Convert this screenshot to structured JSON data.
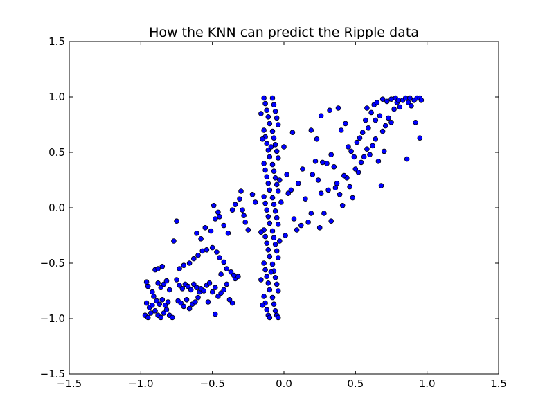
{
  "chart_data": {
    "type": "scatter",
    "title": "How the KNN can predict the Ripple data",
    "xlabel": "",
    "ylabel": "",
    "xlim": [
      -1.5,
      1.5
    ],
    "ylim": [
      -1.5,
      1.5
    ],
    "x_ticks": [
      "−1.5",
      "−1.0",
      "−0.5",
      "0.0",
      "0.5",
      "1.0",
      "1.5"
    ],
    "y_ticks": [
      "−1.5",
      "−1.0",
      "−0.5",
      "0.0",
      "0.5",
      "1.0",
      "1.5"
    ],
    "grid": false,
    "marker_fill": "#0000ff",
    "marker_edge": "#000000",
    "series": [
      {
        "points": [
          [
            -0.97,
            -0.97
          ],
          [
            -0.95,
            -0.99
          ],
          [
            -0.93,
            -0.95
          ],
          [
            -0.96,
            -0.86
          ],
          [
            -0.94,
            -0.9
          ],
          [
            -0.92,
            -0.88
          ],
          [
            -0.9,
            -0.93
          ],
          [
            -0.88,
            -0.97
          ],
          [
            -0.86,
            -0.99
          ],
          [
            -0.84,
            -0.95
          ],
          [
            -0.82,
            -0.92
          ],
          [
            -0.8,
            -0.97
          ],
          [
            -0.78,
            -0.99
          ],
          [
            -0.91,
            -0.8
          ],
          [
            -0.89,
            -0.84
          ],
          [
            -0.87,
            -0.87
          ],
          [
            -0.85,
            -0.83
          ],
          [
            -0.83,
            -0.88
          ],
          [
            -0.81,
            -0.85
          ],
          [
            -0.96,
            -0.67
          ],
          [
            -0.95,
            -0.71
          ],
          [
            -0.92,
            -0.76
          ],
          [
            -0.88,
            -0.68
          ],
          [
            -0.86,
            -0.72
          ],
          [
            -0.84,
            -0.69
          ],
          [
            -0.82,
            -0.66
          ],
          [
            -0.8,
            -0.74
          ],
          [
            -0.9,
            -0.56
          ],
          [
            -0.88,
            -0.55
          ],
          [
            -0.85,
            -0.53
          ],
          [
            -0.75,
            -0.65
          ],
          [
            -0.73,
            -0.7
          ],
          [
            -0.71,
            -0.73
          ],
          [
            -0.69,
            -0.69
          ],
          [
            -0.67,
            -0.71
          ],
          [
            -0.65,
            -0.74
          ],
          [
            -0.63,
            -0.69
          ],
          [
            -0.61,
            -0.72
          ],
          [
            -0.59,
            -0.76
          ],
          [
            -0.74,
            -0.84
          ],
          [
            -0.72,
            -0.86
          ],
          [
            -0.7,
            -0.89
          ],
          [
            -0.68,
            -0.83
          ],
          [
            -0.66,
            -0.91
          ],
          [
            -0.64,
            -0.87
          ],
          [
            -0.62,
            -0.85
          ],
          [
            -0.6,
            -0.81
          ],
          [
            -0.58,
            -0.73
          ],
          [
            -0.56,
            -0.75
          ],
          [
            -0.54,
            -0.7
          ],
          [
            -0.52,
            -0.68
          ],
          [
            -0.5,
            -0.76
          ],
          [
            -0.48,
            -0.72
          ],
          [
            -0.46,
            -0.8
          ],
          [
            -0.44,
            -0.77
          ],
          [
            -0.42,
            -0.74
          ],
          [
            -0.4,
            -0.69
          ],
          [
            -0.38,
            -0.83
          ],
          [
            -0.36,
            -0.86
          ],
          [
            -0.34,
            -0.64
          ],
          [
            -0.32,
            -0.62
          ],
          [
            -0.73,
            -0.55
          ],
          [
            -0.7,
            -0.52
          ],
          [
            -0.66,
            -0.5
          ],
          [
            -0.63,
            -0.46
          ],
          [
            -0.6,
            -0.43
          ],
          [
            -0.57,
            -0.39
          ],
          [
            -0.54,
            -0.38
          ],
          [
            -0.5,
            -0.36
          ],
          [
            -0.47,
            -0.4
          ],
          [
            -0.45,
            -0.45
          ],
          [
            -0.42,
            -0.49
          ],
          [
            -0.4,
            -0.55
          ],
          [
            -0.37,
            -0.58
          ],
          [
            -0.35,
            -0.61
          ],
          [
            -0.77,
            -0.3
          ],
          [
            -0.75,
            -0.12
          ],
          [
            -0.61,
            -0.23
          ],
          [
            -0.58,
            -0.28
          ],
          [
            -0.55,
            -0.18
          ],
          [
            -0.51,
            -0.21
          ],
          [
            -0.48,
            -0.1
          ],
          [
            -0.45,
            -0.08
          ],
          [
            -0.42,
            -0.16
          ],
          [
            -0.39,
            -0.23
          ],
          [
            -0.36,
            -0.02
          ],
          [
            -0.34,
            0.03
          ],
          [
            -0.31,
            0.08
          ],
          [
            -0.29,
            -0.02
          ],
          [
            -0.27,
            -0.13
          ],
          [
            -0.25,
            -0.2
          ],
          [
            -0.22,
            0.12
          ],
          [
            -0.2,
            0.05
          ],
          [
            -0.49,
            0.02
          ],
          [
            -0.46,
            -0.04
          ],
          [
            -0.44,
            -0.6
          ],
          [
            -0.48,
            -0.96
          ],
          [
            -0.53,
            -0.85
          ],
          [
            -0.3,
            0.15
          ],
          [
            -0.28,
            -0.07
          ],
          [
            -0.14,
            0.99
          ],
          [
            -0.13,
            0.94
          ],
          [
            -0.12,
            0.88
          ],
          [
            -0.11,
            0.82
          ],
          [
            -0.1,
            0.76
          ],
          [
            -0.14,
            0.7
          ],
          [
            -0.13,
            0.64
          ],
          [
            -0.12,
            0.58
          ],
          [
            -0.11,
            0.52
          ],
          [
            -0.1,
            0.46
          ],
          [
            -0.14,
            0.4
          ],
          [
            -0.13,
            0.34
          ],
          [
            -0.12,
            0.28
          ],
          [
            -0.11,
            0.22
          ],
          [
            -0.1,
            0.16
          ],
          [
            -0.14,
            0.1
          ],
          [
            -0.13,
            0.04
          ],
          [
            -0.12,
            -0.02
          ],
          [
            -0.11,
            -0.08
          ],
          [
            -0.1,
            -0.14
          ],
          [
            -0.14,
            -0.2
          ],
          [
            -0.13,
            -0.26
          ],
          [
            -0.12,
            -0.32
          ],
          [
            -0.11,
            -0.38
          ],
          [
            -0.1,
            -0.44
          ],
          [
            -0.14,
            -0.5
          ],
          [
            -0.13,
            -0.56
          ],
          [
            -0.12,
            -0.62
          ],
          [
            -0.11,
            -0.68
          ],
          [
            -0.1,
            -0.74
          ],
          [
            -0.14,
            -0.8
          ],
          [
            -0.13,
            -0.86
          ],
          [
            -0.12,
            -0.92
          ],
          [
            -0.11,
            -0.97
          ],
          [
            -0.1,
            -0.99
          ],
          [
            -0.08,
            0.99
          ],
          [
            -0.07,
            0.93
          ],
          [
            -0.06,
            0.87
          ],
          [
            -0.05,
            0.81
          ],
          [
            -0.04,
            0.75
          ],
          [
            -0.08,
            0.69
          ],
          [
            -0.07,
            0.63
          ],
          [
            -0.06,
            0.57
          ],
          [
            -0.05,
            0.51
          ],
          [
            -0.04,
            0.45
          ],
          [
            -0.08,
            0.39
          ],
          [
            -0.07,
            0.33
          ],
          [
            -0.06,
            0.27
          ],
          [
            -0.05,
            0.21
          ],
          [
            -0.04,
            0.15
          ],
          [
            -0.08,
            0.09
          ],
          [
            -0.07,
            0.03
          ],
          [
            -0.06,
            -0.03
          ],
          [
            -0.05,
            -0.09
          ],
          [
            -0.04,
            -0.15
          ],
          [
            -0.08,
            -0.21
          ],
          [
            -0.07,
            -0.27
          ],
          [
            -0.06,
            -0.33
          ],
          [
            -0.05,
            -0.39
          ],
          [
            -0.04,
            -0.45
          ],
          [
            -0.08,
            -0.51
          ],
          [
            -0.07,
            -0.57
          ],
          [
            -0.06,
            -0.63
          ],
          [
            -0.05,
            -0.69
          ],
          [
            -0.04,
            -0.75
          ],
          [
            -0.08,
            -0.81
          ],
          [
            -0.07,
            -0.87
          ],
          [
            -0.06,
            -0.93
          ],
          [
            -0.05,
            -0.97
          ],
          [
            -0.04,
            -0.99
          ],
          [
            -0.15,
            0.62
          ],
          [
            -0.15,
            -0.88
          ],
          [
            -0.16,
            -0.22
          ],
          [
            -0.09,
            0.55
          ],
          [
            -0.09,
            -0.58
          ],
          [
            -0.03,
            0.25
          ],
          [
            -0.03,
            -0.3
          ],
          [
            -0.02,
            0.05
          ],
          [
            -0.16,
            0.85
          ],
          [
            -0.16,
            -0.65
          ],
          [
            0.0,
            0.55
          ],
          [
            0.02,
            0.3
          ],
          [
            0.05,
            0.16
          ],
          [
            0.07,
            -0.1
          ],
          [
            0.09,
            -0.2
          ],
          [
            0.1,
            0.22
          ],
          [
            0.13,
            0.35
          ],
          [
            0.15,
            0.08
          ],
          [
            0.17,
            -0.13
          ],
          [
            0.2,
            0.3
          ],
          [
            0.22,
            0.42
          ],
          [
            0.24,
            0.25
          ],
          [
            0.26,
            0.13
          ],
          [
            0.28,
            -0.05
          ],
          [
            0.3,
            0.4
          ],
          [
            0.33,
            0.48
          ],
          [
            0.35,
            0.37
          ],
          [
            0.37,
            0.22
          ],
          [
            0.39,
            0.12
          ],
          [
            0.41,
            0.02
          ],
          [
            0.06,
            0.68
          ],
          [
            0.19,
            0.7
          ],
          [
            0.23,
            0.62
          ],
          [
            0.26,
            0.83
          ],
          [
            0.32,
            0.88
          ],
          [
            0.38,
            0.9
          ],
          [
            0.4,
            0.7
          ],
          [
            0.43,
            0.76
          ],
          [
            0.45,
            0.55
          ],
          [
            0.47,
            0.51
          ],
          [
            0.49,
            0.46
          ],
          [
            0.51,
            0.59
          ],
          [
            0.53,
            0.63
          ],
          [
            0.55,
            0.68
          ],
          [
            0.57,
            0.79
          ],
          [
            0.59,
            0.72
          ],
          [
            0.61,
            0.86
          ],
          [
            0.63,
            0.93
          ],
          [
            0.65,
            0.95
          ],
          [
            0.67,
            0.83
          ],
          [
            0.69,
            0.69
          ],
          [
            0.71,
            0.74
          ],
          [
            0.73,
            0.81
          ],
          [
            0.75,
            0.77
          ],
          [
            0.77,
            0.89
          ],
          [
            0.79,
            0.95
          ],
          [
            0.81,
            0.91
          ],
          [
            0.83,
            0.97
          ],
          [
            0.85,
            0.99
          ],
          [
            0.87,
            0.95
          ],
          [
            0.89,
            0.92
          ],
          [
            0.91,
            0.97
          ],
          [
            0.93,
            0.99
          ],
          [
            0.95,
            0.99
          ],
          [
            0.96,
            0.97
          ],
          [
            0.72,
            0.96
          ],
          [
            0.75,
            0.98
          ],
          [
            0.78,
            0.99
          ],
          [
            0.8,
            0.97
          ],
          [
            0.88,
            0.99
          ],
          [
            0.44,
            0.27
          ],
          [
            0.46,
            0.19
          ],
          [
            0.48,
            0.09
          ],
          [
            0.5,
            0.35
          ],
          [
            0.52,
            0.32
          ],
          [
            0.54,
            0.41
          ],
          [
            0.56,
            0.46
          ],
          [
            0.58,
            0.53
          ],
          [
            0.6,
            0.48
          ],
          [
            0.62,
            0.56
          ],
          [
            0.64,
            0.62
          ],
          [
            0.66,
            0.42
          ],
          [
            0.68,
            0.2
          ],
          [
            0.7,
            0.51
          ],
          [
            0.86,
            0.44
          ],
          [
            0.95,
            0.63
          ],
          [
            0.92,
            0.77
          ],
          [
            0.33,
            -0.12
          ],
          [
            0.25,
            -0.18
          ],
          [
            0.19,
            -0.05
          ],
          [
            0.12,
            -0.16
          ],
          [
            0.03,
            0.13
          ],
          [
            0.01,
            -0.25
          ],
          [
            0.36,
            0.18
          ],
          [
            0.42,
            0.29
          ],
          [
            0.31,
            0.16
          ],
          [
            0.27,
            0.41
          ],
          [
            0.58,
            0.9
          ],
          [
            0.64,
            0.79
          ],
          [
            0.69,
            0.98
          ]
        ]
      }
    ]
  }
}
